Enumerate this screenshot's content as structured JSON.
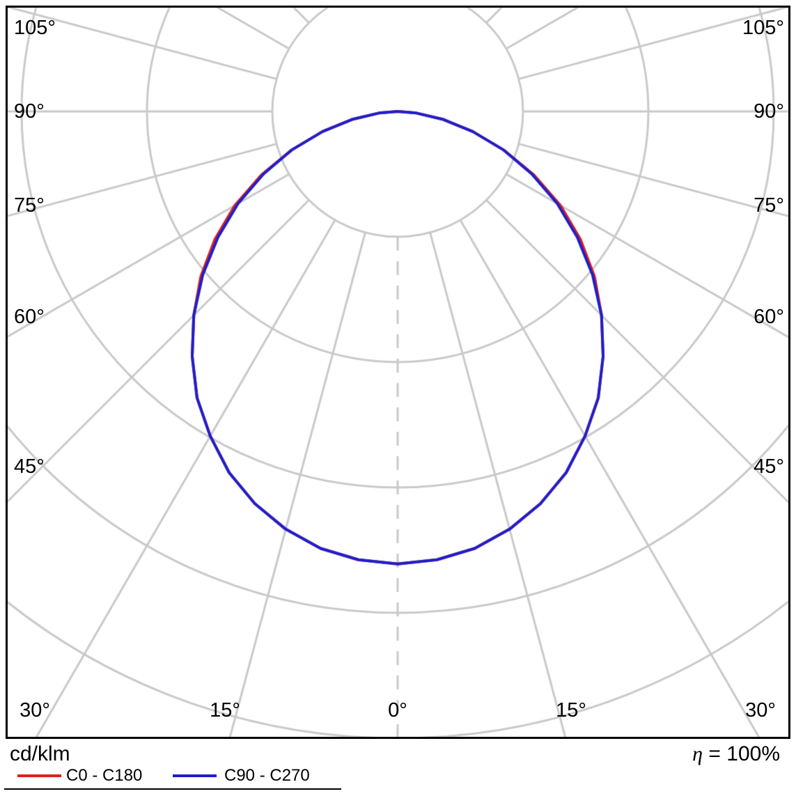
{
  "footer": {
    "units": "cd/klm",
    "eta_symbol": "η",
    "eta_rest": "= 100%",
    "legend": [
      {
        "name": "C0 - C180",
        "color": "#e02020"
      },
      {
        "name": "C90 - C270",
        "color": "#1e1ecb"
      }
    ]
  },
  "chart_data": {
    "type": "line",
    "subtype": "polar-photometric-distribution",
    "title": "",
    "units_label": "cd/klm",
    "efficiency_text": "η = 100%",
    "legend_position": "bottom",
    "grid": true,
    "symmetric": true,
    "ring_step_cd_klm": 100,
    "ring_values_cd_klm": [
      100,
      200,
      300,
      400,
      500
    ],
    "angle_ticks_side": [
      "105°",
      "90°",
      "75°",
      "60°",
      "45°"
    ],
    "angle_ticks_bottom": [
      "30°",
      "15°",
      "0°",
      "15°",
      "30°"
    ],
    "gamma_deg": [
      0,
      5,
      10,
      15,
      20,
      25,
      30,
      35,
      40,
      45,
      50,
      55,
      60,
      65,
      70,
      75,
      80,
      85,
      90
    ],
    "series": [
      {
        "name": "C0 - C180",
        "color": "#e02020",
        "values": [
          361,
          359,
          354,
          345,
          333,
          318,
          299,
          279,
          255,
          230,
          205,
          178,
          150,
          120,
          90,
          62,
          37,
          15,
          0
        ]
      },
      {
        "name": "C90 - C270",
        "color": "#1e1ecb",
        "values": [
          361,
          359,
          354,
          345,
          333,
          318,
          299,
          279,
          255,
          230,
          203,
          175,
          147,
          118,
          90,
          62,
          37,
          15,
          0
        ]
      }
    ]
  }
}
